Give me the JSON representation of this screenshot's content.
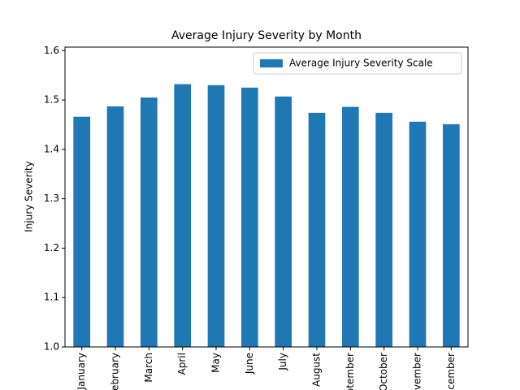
{
  "chart_data": {
    "type": "bar",
    "title": "Average Injury Severity by Month",
    "y_label": "Injury Severity",
    "categories": [
      "January",
      "February",
      "March",
      "April",
      "May",
      "June",
      "July",
      "August",
      "September",
      "October",
      "November",
      "December"
    ],
    "series": [
      {
        "name": "Average Injury Severity Scale",
        "color": "#1f77b4",
        "values": [
          1.466,
          1.487,
          1.505,
          1.532,
          1.53,
          1.525,
          1.507,
          1.474,
          1.486,
          1.474,
          1.456,
          1.451
        ]
      }
    ],
    "ylim": [
      1.0,
      1.607
    ],
    "yticks": [
      {
        "value": 1.0,
        "label": "1.0"
      },
      {
        "value": 1.1,
        "label": "1.1"
      },
      {
        "value": 1.2,
        "label": "1.2"
      },
      {
        "value": 1.3,
        "label": "1.3"
      },
      {
        "value": 1.4,
        "label": "1.4"
      },
      {
        "value": 1.5,
        "label": "1.5"
      },
      {
        "value": 1.6,
        "label": "1.6"
      }
    ],
    "legend": "upper right"
  }
}
